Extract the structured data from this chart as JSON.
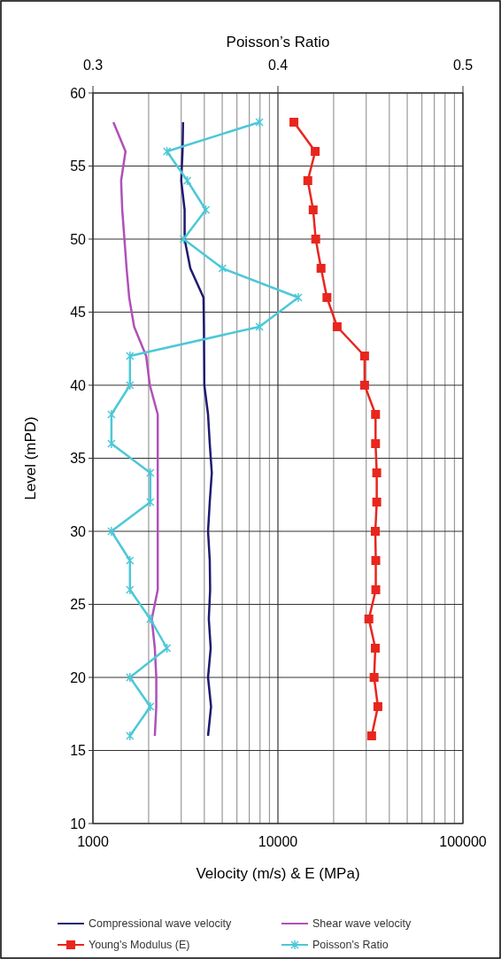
{
  "chart_data": {
    "type": "line",
    "x2label": "Poisson’s Ratio",
    "xlabel": "Velocity (m/s) & E (MPa)",
    "ylabel": "Level (mPD)",
    "log": "x",
    "grid": true,
    "legend": "bottom",
    "xlim": [
      1000,
      100000
    ],
    "xticks": [
      1000,
      {
        "value": 2000,
        "label": null
      },
      {
        "value": 3000,
        "label": null
      },
      {
        "value": 4000,
        "label": null
      },
      {
        "value": 5000,
        "label": null
      },
      {
        "value": 6000,
        "label": null
      },
      {
        "value": 7000,
        "label": null
      },
      {
        "value": 8000,
        "label": null
      },
      {
        "value": 9000,
        "label": null
      },
      10000,
      {
        "value": 20000,
        "label": null
      },
      {
        "value": 30000,
        "label": null
      },
      {
        "value": 40000,
        "label": null
      },
      {
        "value": 50000,
        "label": null
      },
      {
        "value": 60000,
        "label": null
      },
      {
        "value": 70000,
        "label": null
      },
      {
        "value": 80000,
        "label": null
      },
      {
        "value": 90000,
        "label": null
      },
      100000
    ],
    "x2lim": [
      0.3,
      0.5
    ],
    "x2ticks": [
      0.3,
      0.4,
      0.5
    ],
    "ylim": [
      10,
      60
    ],
    "yticks": [
      10,
      15,
      20,
      25,
      30,
      35,
      40,
      45,
      50,
      55,
      60
    ],
    "series": [
      {
        "name": "Compressional wave velocity",
        "color": "#1f1a6e",
        "marker": "none",
        "x": [
          3070,
          3050,
          3000,
          3130,
          3130,
          3360,
          3960,
          3980,
          3990,
          4000,
          4190,
          4280,
          4390,
          4280,
          4190,
          4280,
          4300,
          4230,
          4330,
          4190,
          4350,
          4190
        ],
        "values": [
          58,
          56,
          54,
          52,
          50,
          48,
          46,
          44,
          42,
          40,
          38,
          36,
          34,
          32,
          30,
          28,
          26,
          24,
          22,
          20,
          18,
          16
        ]
      },
      {
        "name": "Shear wave velocity",
        "color": "#b050b8",
        "marker": "none",
        "x": [
          1290,
          1500,
          1420,
          1440,
          1480,
          1520,
          1570,
          1670,
          1940,
          2030,
          2240,
          2240,
          2240,
          2240,
          2240,
          2240,
          2240,
          2080,
          2160,
          2200,
          2200,
          2160
        ],
        "values": [
          58,
          56,
          54,
          52,
          50,
          48,
          46,
          44,
          42,
          40,
          38,
          36,
          34,
          32,
          30,
          28,
          26,
          24,
          22,
          20,
          18,
          16
        ]
      },
      {
        "name": "Young's Modulus (E)",
        "color": "#e8261e",
        "marker": "square",
        "x": [
          12200,
          15900,
          14500,
          15500,
          16000,
          17100,
          18400,
          20900,
          29400,
          29400,
          33700,
          33700,
          34200,
          34200,
          33600,
          33800,
          33800,
          31000,
          33600,
          33100,
          34700,
          32100
        ],
        "values": [
          58,
          56,
          54,
          52,
          50,
          48,
          46,
          44,
          42,
          40,
          38,
          36,
          34,
          32,
          30,
          28,
          26,
          24,
          22,
          20,
          18,
          16
        ]
      },
      {
        "name": "Poisson's Ratio",
        "color": "#4cc8d8",
        "marker": "cross",
        "axis": "x2",
        "x": [
          0.39,
          0.34,
          0.351,
          0.361,
          0.349,
          0.37,
          0.411,
          0.39,
          0.32,
          0.32,
          0.31,
          0.31,
          0.331,
          0.331,
          0.31,
          0.32,
          0.32,
          0.331,
          0.34,
          0.32,
          0.331,
          0.32
        ],
        "values": [
          58,
          56,
          54,
          52,
          50,
          48,
          46,
          44,
          42,
          40,
          38,
          36,
          34,
          32,
          30,
          28,
          26,
          24,
          22,
          20,
          18,
          16
        ]
      }
    ]
  }
}
